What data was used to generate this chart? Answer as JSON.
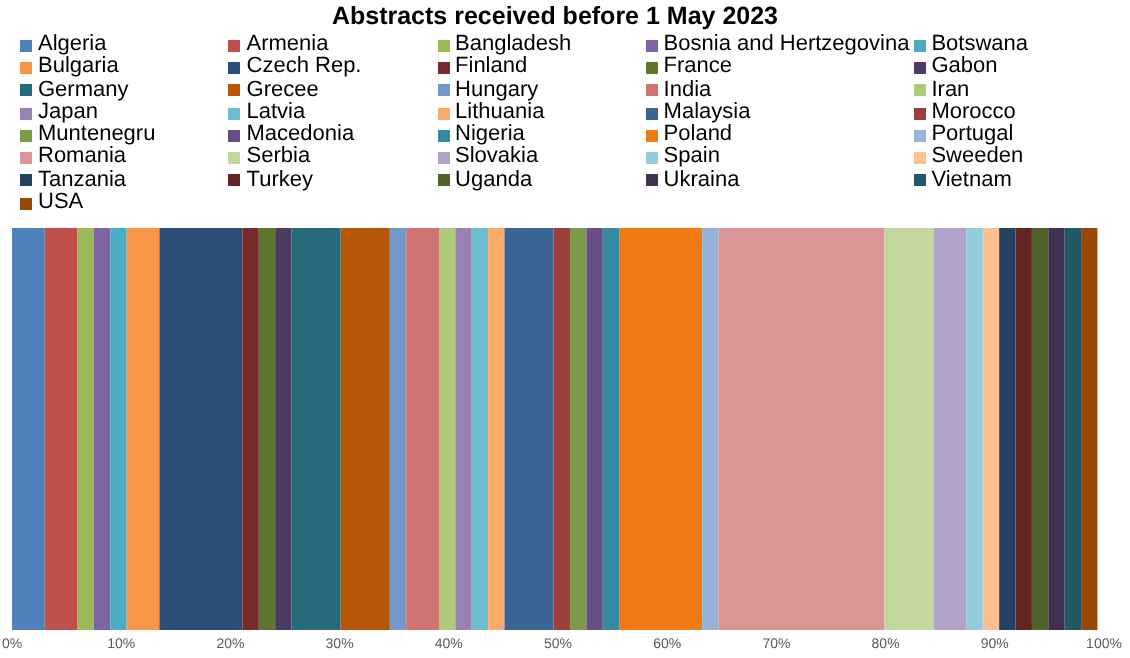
{
  "chart_data": {
    "type": "bar",
    "title": "Abstracts received before 1 May 2023",
    "orientation": "horizontal",
    "stacked": true,
    "categories": [
      null
    ],
    "legend": "top",
    "tick_labels": "x",
    "xlim": [
      0,
      100
    ],
    "xticks": [
      {
        "value": 0,
        "label": "0%"
      },
      {
        "value": 10,
        "label": "10%"
      },
      {
        "value": 20,
        "label": "20%"
      },
      {
        "value": 30,
        "label": "30%"
      },
      {
        "value": 40,
        "label": "40%"
      },
      {
        "value": 50,
        "label": "50%"
      },
      {
        "value": 60,
        "label": "60%"
      },
      {
        "value": 70,
        "label": "70%"
      },
      {
        "value": 80,
        "label": "80%"
      },
      {
        "value": 90,
        "label": "90%"
      },
      {
        "value": 100,
        "label": "100%"
      }
    ],
    "series": [
      {
        "name": "Algeria",
        "color": "#4f81bd",
        "values": [
          3.0
        ]
      },
      {
        "name": "Armenia",
        "color": "#c0504d",
        "values": [
          3.0
        ]
      },
      {
        "name": "Bangladesh",
        "color": "#9bbb59",
        "values": [
          1.5
        ]
      },
      {
        "name": "Bosnia and Hertzegovina",
        "color": "#8064a2",
        "values": [
          1.5
        ]
      },
      {
        "name": "Botswana",
        "color": "#4bacc6",
        "values": [
          1.5
        ]
      },
      {
        "name": "Bulgaria",
        "color": "#f79646",
        "values": [
          3.0
        ]
      },
      {
        "name": "Czech Rep.",
        "color": "#2c4d75",
        "values": [
          7.6
        ]
      },
      {
        "name": "Finland",
        "color": "#772c2a",
        "values": [
          1.5
        ]
      },
      {
        "name": "France",
        "color": "#5f7530",
        "values": [
          1.5
        ]
      },
      {
        "name": "Gabon",
        "color": "#4d3b62",
        "values": [
          1.5
        ]
      },
      {
        "name": "Germany",
        "color": "#276a7c",
        "values": [
          4.5
        ]
      },
      {
        "name": "Grecee",
        "color": "#b65708",
        "values": [
          4.5
        ]
      },
      {
        "name": "Hungary",
        "color": "#729aca",
        "values": [
          1.5
        ]
      },
      {
        "name": "India",
        "color": "#cd7371",
        "values": [
          3.0
        ]
      },
      {
        "name": "Iran",
        "color": "#afc97a",
        "values": [
          1.5
        ]
      },
      {
        "name": "Japan",
        "color": "#9983b5",
        "values": [
          1.5
        ]
      },
      {
        "name": "Latvia",
        "color": "#6fbdd1",
        "values": [
          1.5
        ]
      },
      {
        "name": "Lithuania",
        "color": "#f9ab6b",
        "values": [
          1.5
        ]
      },
      {
        "name": "Malaysia",
        "color": "#3a6595",
        "values": [
          4.5
        ]
      },
      {
        "name": "Morocco",
        "color": "#9c403d",
        "values": [
          1.5
        ]
      },
      {
        "name": "Muntenegru",
        "color": "#7d9a48",
        "values": [
          1.5
        ]
      },
      {
        "name": "Macedonia",
        "color": "#664f86",
        "values": [
          1.5
        ]
      },
      {
        "name": "Nigeria",
        "color": "#358ba2",
        "values": [
          1.5
        ]
      },
      {
        "name": "Poland",
        "color": "#f27a12",
        "values": [
          7.6
        ]
      },
      {
        "name": "Portugal",
        "color": "#95b3d7",
        "values": [
          1.5
        ]
      },
      {
        "name": "Romania",
        "color": "#d99694",
        "values": [
          15.2
        ]
      },
      {
        "name": "Serbia",
        "color": "#c3d69b",
        "values": [
          4.5
        ]
      },
      {
        "name": "Slovakia",
        "color": "#b3a2c7",
        "values": [
          3.0
        ]
      },
      {
        "name": "Spain",
        "color": "#93cddd",
        "values": [
          1.5
        ]
      },
      {
        "name": "Sweeden",
        "color": "#fac090",
        "values": [
          1.5
        ]
      },
      {
        "name": "Tanzania",
        "color": "#254061",
        "values": [
          1.5
        ]
      },
      {
        "name": "Turkey",
        "color": "#632523",
        "values": [
          1.5
        ]
      },
      {
        "name": "Uganda",
        "color": "#4f6228",
        "values": [
          1.5
        ]
      },
      {
        "name": "Ukraina",
        "color": "#403152",
        "values": [
          1.5
        ]
      },
      {
        "name": "Vietnam",
        "color": "#215968",
        "values": [
          1.5
        ]
      },
      {
        "name": "USA",
        "color": "#984807",
        "values": [
          1.5
        ]
      }
    ]
  }
}
